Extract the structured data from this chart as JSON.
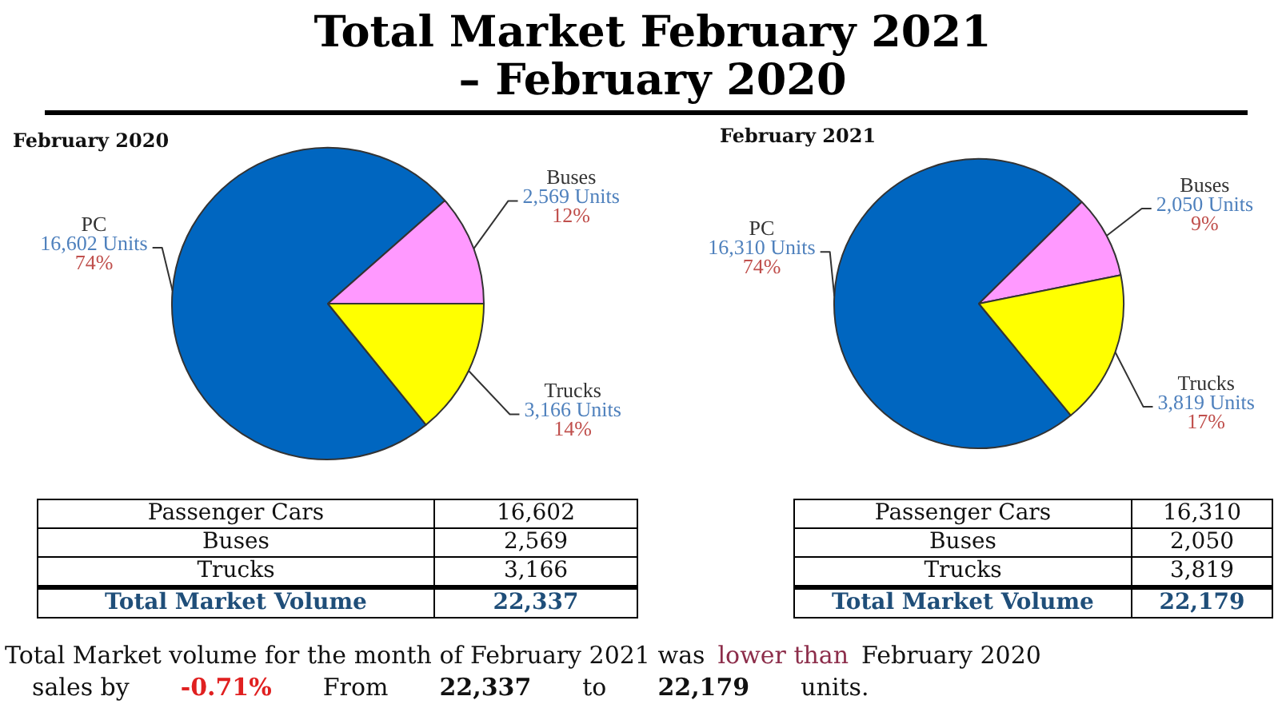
{
  "chart_data": [
    {
      "type": "other",
      "title": "Total Market February 2021 – February 2020"
    },
    {
      "type": "pie",
      "title": "February 2020",
      "categories": [
        "PC",
        "Buses",
        "Trucks"
      ],
      "values": [
        16602,
        2569,
        3166
      ],
      "colors": [
        "#0066c0",
        "#ff99ff",
        "#ffff00"
      ],
      "value_labels": [
        "16,602 Units\n74%",
        "2,569 Units\n12%",
        "3,166 Units\n14%"
      ],
      "annotations": [
        "Passenger Cars",
        "16,602",
        "Buses",
        "2,569",
        "Trucks",
        "3,166",
        "Total Market Volume",
        "22,337"
      ]
    },
    {
      "type": "pie",
      "title": "February 2021",
      "categories": [
        "PC",
        "Buses",
        "Trucks"
      ],
      "values": [
        16310,
        2050,
        3819
      ],
      "colors": [
        "#0066c0",
        "#ff99ff",
        "#ffff00"
      ],
      "value_labels": [
        "16,310 Units\n74%",
        "2,050 Units\n9%",
        "3,819 Units\n17%"
      ],
      "annotations": [
        "Passenger Cars",
        "16,310",
        "Buses",
        "2,050",
        "Trucks",
        "3,819",
        "Total Market Volume",
        "22,179"
      ]
    },
    {
      "type": "other",
      "annotations": [
        "Total Market volume for the month of February 2021 was",
        "lower than",
        "February 2020",
        "sales by",
        "-0.71%",
        "From",
        "22,337",
        "to",
        "22,179",
        "units."
      ]
    }
  ]
}
